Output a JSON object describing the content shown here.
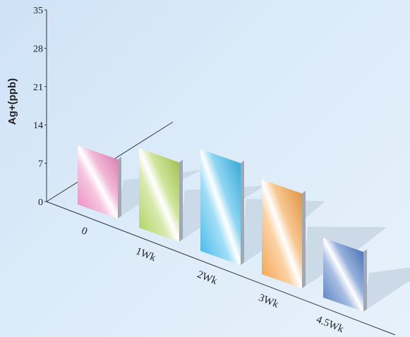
{
  "chart_data": {
    "type": "bar",
    "style": "3d-perspective",
    "title": "",
    "xlabel": "",
    "ylabel": "Ag+(ppb)",
    "ylim": [
      0,
      35
    ],
    "yticks": [
      0,
      7,
      14,
      21,
      28,
      35
    ],
    "categories": [
      "0",
      "1Wk",
      "2Wk",
      "3Wk",
      "4.5Wk"
    ],
    "values": [
      10.8,
      14.5,
      18.6,
      17.3,
      10.9
    ],
    "colors": [
      "#e87fb8",
      "#a8cf4a",
      "#31b4e8",
      "#f39b3a",
      "#3f6fbd"
    ],
    "legend": "none",
    "grid": false
  }
}
